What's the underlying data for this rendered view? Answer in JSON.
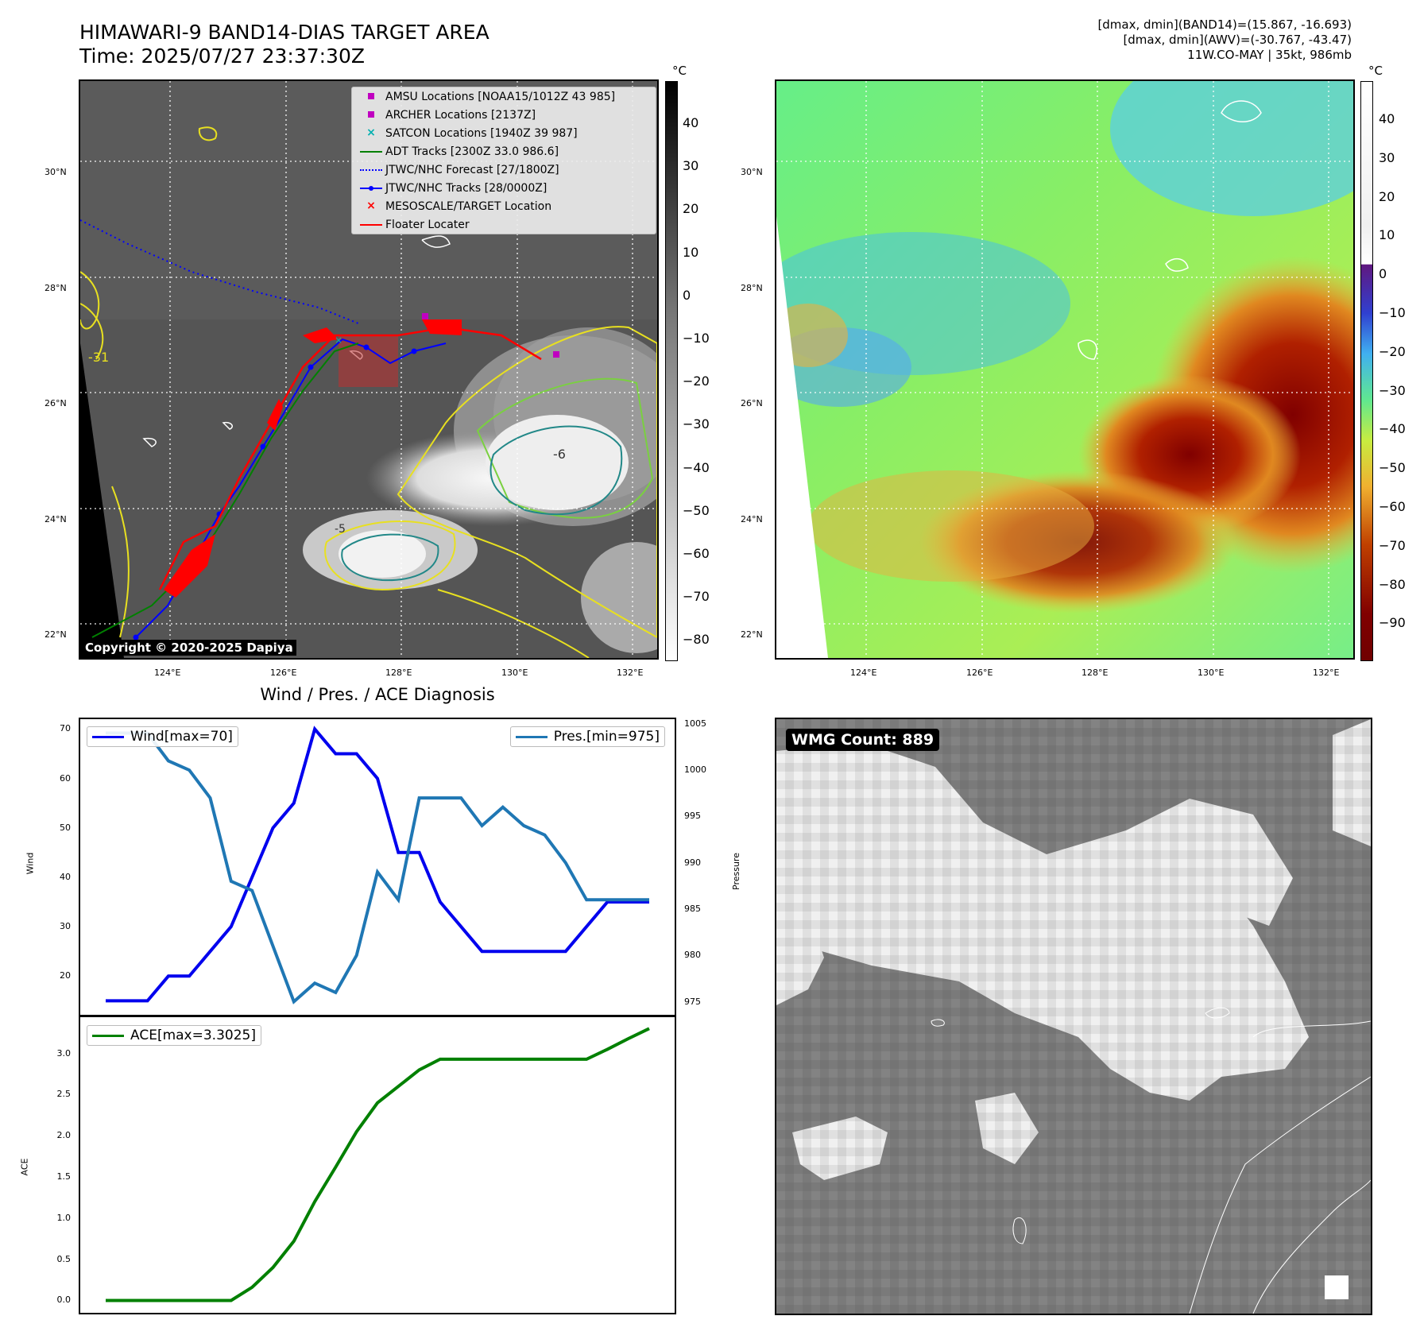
{
  "header": {
    "title_line1": "HIMAWARI-9 BAND14-DIAS TARGET AREA",
    "title_line2": "Time: 2025/07/27 23:37:30Z",
    "info_line1": "[dmax, dmin](BAND14)=(15.867, -16.693)",
    "info_line2": "[dmax, dmin](AWV)=(-30.767, -43.47)",
    "info_line3": "11W.CO-MAY | 35kt, 986mb"
  },
  "map": {
    "lat_labels": [
      "30°N",
      "28°N",
      "26°N",
      "24°N",
      "22°N"
    ],
    "lon_labels": [
      "124°E",
      "126°E",
      "128°E",
      "130°E",
      "132°E"
    ],
    "contour_labels": [
      "-31",
      "-6",
      "-5"
    ],
    "copyright": "Copyright © 2020-2025 Dapiya",
    "legend": [
      {
        "label": "AMSU Locations [NOAA15/1012Z 43 985]",
        "symbol": "square",
        "color": "#c000c0"
      },
      {
        "label": "ARCHER Locations [2137Z]",
        "symbol": "square",
        "color": "#c000c0"
      },
      {
        "label": "SATCON Locations [1940Z 39 987]",
        "symbol": "x",
        "color": "#00b0b0"
      },
      {
        "label": "ADT Tracks [2300Z 33.0 986.6]",
        "symbol": "line",
        "color": "#008000"
      },
      {
        "label": "JTWC/NHC Forecast [27/1800Z]",
        "symbol": "dotted",
        "color": "#0000ff"
      },
      {
        "label": "JTWC/NHC Tracks [28/0000Z]",
        "symbol": "line-dot",
        "color": "#0000ff"
      },
      {
        "label": "MESOSCALE/TARGET Location",
        "symbol": "x-bold",
        "color": "#ff0000"
      },
      {
        "label": "Floater Locater",
        "symbol": "line",
        "color": "#ff0000"
      }
    ]
  },
  "colorbar_left": {
    "unit": "°C",
    "ticks": [
      "40",
      "30",
      "20",
      "10",
      "0",
      "−10",
      "−20",
      "−30",
      "−40",
      "−50",
      "−60",
      "−70",
      "−80"
    ]
  },
  "colorbar_right": {
    "unit": "°C",
    "ticks": [
      "40",
      "30",
      "20",
      "10",
      "0",
      "−10",
      "−20",
      "−30",
      "−40",
      "−50",
      "−60",
      "−70",
      "−80",
      "−90"
    ]
  },
  "wmg": {
    "label": "WMG Count: 889"
  },
  "chart_data": [
    {
      "type": "line",
      "title": "Wind / Pres. / ACE Diagnosis",
      "ylabel": "Wind",
      "ylabel_right": "Pressure",
      "yticks": [
        "20",
        "30",
        "40",
        "50",
        "60",
        "70"
      ],
      "yticks_right": [
        "975",
        "980",
        "985",
        "990",
        "995",
        "1000",
        "1005"
      ],
      "ylim": [
        12,
        72
      ],
      "ylim_right": [
        973.5,
        1005.5
      ],
      "series": [
        {
          "name": "Wind[max=70]",
          "axis": "left",
          "color": "#0000ee",
          "values": [
            15,
            15,
            15,
            20,
            20,
            25,
            30,
            40,
            50,
            55,
            70,
            65,
            65,
            60,
            45,
            45,
            35,
            30,
            25,
            25,
            25,
            25,
            25,
            30,
            35,
            35,
            35
          ]
        },
        {
          "name": "Pres.[min=975]",
          "axis": "right",
          "color": "#1f77b4",
          "values": [
            1004,
            1004,
            1004,
            1001,
            1000,
            997,
            988,
            987,
            981,
            975,
            977,
            976,
            980,
            989,
            986,
            997,
            997,
            997,
            994,
            996,
            994,
            993,
            990,
            986,
            986,
            986,
            986
          ]
        }
      ]
    },
    {
      "type": "line",
      "ylabel": "ACE",
      "yticks": [
        "0.0",
        "0.5",
        "1.0",
        "1.5",
        "2.0",
        "2.5",
        "3.0"
      ],
      "ylim": [
        -0.15,
        3.45
      ],
      "series": [
        {
          "name": "ACE[max=3.3025]",
          "color": "#008000",
          "values": [
            0,
            0,
            0,
            0,
            0,
            0,
            0,
            0.16,
            0.4,
            0.72,
            1.2,
            1.62,
            2.05,
            2.4,
            2.6,
            2.8,
            2.93,
            2.93,
            2.93,
            2.93,
            2.93,
            2.93,
            2.93,
            2.93,
            3.05,
            3.18,
            3.3025
          ]
        }
      ]
    }
  ]
}
